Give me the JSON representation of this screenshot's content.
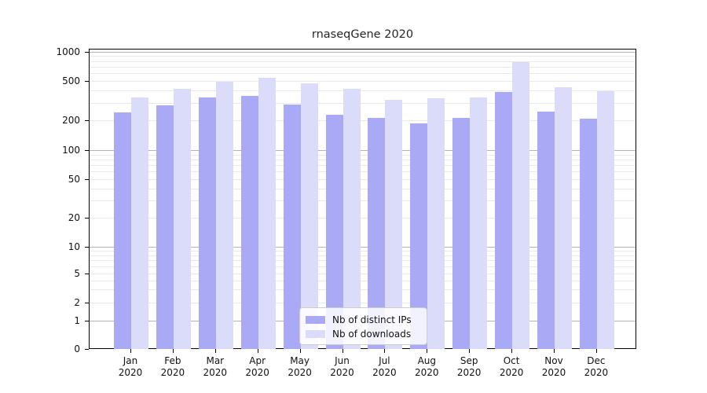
{
  "title": "rnaseqGene 2020",
  "chart_data": {
    "type": "bar",
    "title": "rnaseqGene 2020",
    "categories": [
      "Jan 2020",
      "Feb 2020",
      "Mar 2020",
      "Apr 2020",
      "May 2020",
      "Jun 2020",
      "Jul 2020",
      "Aug 2020",
      "Sep 2020",
      "Oct 2020",
      "Nov 2020",
      "Dec 2020"
    ],
    "series": [
      {
        "name": "Nb of distinct IPs",
        "color": "#a9a9f5",
        "values": [
          244,
          291,
          347,
          360,
          293,
          234,
          217,
          189,
          216,
          395,
          252,
          214
        ]
      },
      {
        "name": "Nb of downloads",
        "color": "#dbdbfa",
        "values": [
          350,
          425,
          505,
          555,
          488,
          424,
          328,
          339,
          350,
          800,
          445,
          400
        ]
      }
    ],
    "xlabel": "",
    "ylabel": "",
    "yscale": "log-with-zero",
    "y_ticks": [
      0,
      1,
      2,
      5,
      10,
      20,
      50,
      100,
      200,
      500,
      1000
    ],
    "ylim": [
      0,
      1000
    ],
    "grid": "major and log-minor horizontal gridlines",
    "legend_position": "lower center inside plot"
  },
  "colors": {
    "bar_distinct_ips": "#a9a9f5",
    "bar_downloads": "#dbdbfa",
    "grid_minor": "#e9e9e9",
    "grid_major": "#b3b3b3",
    "axis": "#000000",
    "text": "#111111"
  }
}
